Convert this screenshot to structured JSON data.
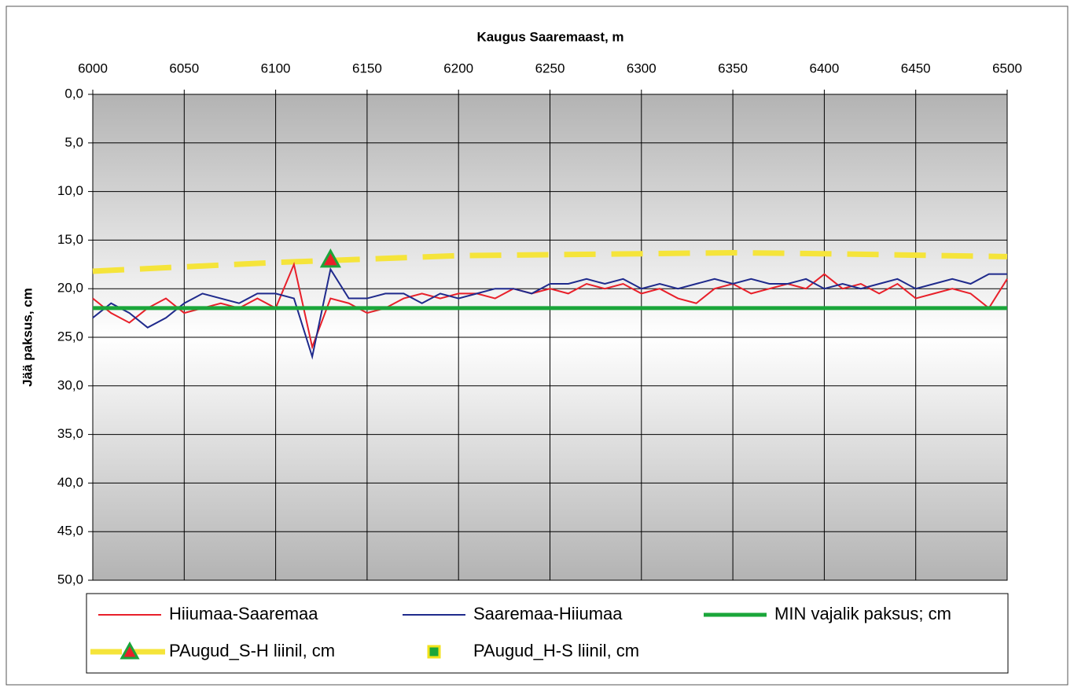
{
  "chart_data": {
    "type": "line",
    "x_label": "Kaugus Saaremaast, m",
    "y_label": "Jää paksus, cm",
    "xlim": [
      6000,
      6500
    ],
    "xticks": [
      6000,
      6050,
      6100,
      6150,
      6200,
      6250,
      6300,
      6350,
      6400,
      6450,
      6500
    ],
    "ylim": [
      0,
      50
    ],
    "y_reversed": true,
    "yticks": [
      {
        "value": 0,
        "label": "0,0"
      },
      {
        "value": 5,
        "label": "5,0"
      },
      {
        "value": 10,
        "label": "10,0"
      },
      {
        "value": 15,
        "label": "15,0"
      },
      {
        "value": 20,
        "label": "20,0"
      },
      {
        "value": 25,
        "label": "25,0"
      },
      {
        "value": 30,
        "label": "30,0"
      },
      {
        "value": 35,
        "label": "35,0"
      },
      {
        "value": 40,
        "label": "40,0"
      },
      {
        "value": 45,
        "label": "45,0"
      },
      {
        "value": 50,
        "label": "50,0"
      }
    ],
    "grid": true,
    "series": [
      {
        "name": "Hiiumaa-Saaremaa",
        "color": "#e8202a",
        "style": "line",
        "x": [
          6000,
          6010,
          6020,
          6030,
          6040,
          6050,
          6060,
          6070,
          6080,
          6090,
          6100,
          6110,
          6120,
          6130,
          6140,
          6150,
          6160,
          6170,
          6180,
          6190,
          6200,
          6210,
          6220,
          6230,
          6240,
          6250,
          6260,
          6270,
          6280,
          6290,
          6300,
          6310,
          6320,
          6330,
          6340,
          6350,
          6360,
          6370,
          6380,
          6390,
          6400,
          6410,
          6420,
          6430,
          6440,
          6450,
          6460,
          6470,
          6480,
          6490,
          6500
        ],
        "values": [
          21,
          22.5,
          23.5,
          22,
          21,
          22.5,
          22,
          21.5,
          22,
          21,
          22,
          17.5,
          26,
          21,
          21.5,
          22.5,
          22,
          21,
          20.5,
          21,
          20.5,
          20.5,
          21,
          20,
          20.5,
          20,
          20.5,
          19.5,
          20,
          19.5,
          20.5,
          20,
          21,
          21.5,
          20,
          19.5,
          20.5,
          20,
          19.5,
          20,
          18.5,
          20,
          19.5,
          20.5,
          19.5,
          21,
          20.5,
          20,
          20.5,
          22,
          19
        ]
      },
      {
        "name": "Saaremaa-Hiiumaa",
        "color": "#1f2a8c",
        "style": "line",
        "x": [
          6000,
          6010,
          6020,
          6030,
          6040,
          6050,
          6060,
          6070,
          6080,
          6090,
          6100,
          6110,
          6120,
          6130,
          6140,
          6150,
          6160,
          6170,
          6180,
          6190,
          6200,
          6210,
          6220,
          6230,
          6240,
          6250,
          6260,
          6270,
          6280,
          6290,
          6300,
          6310,
          6320,
          6330,
          6340,
          6350,
          6360,
          6370,
          6380,
          6390,
          6400,
          6410,
          6420,
          6430,
          6440,
          6450,
          6460,
          6470,
          6480,
          6490,
          6500
        ],
        "values": [
          23,
          21.5,
          22.5,
          24,
          23,
          21.5,
          20.5,
          21,
          21.5,
          20.5,
          20.5,
          21,
          27,
          18,
          21,
          21,
          20.5,
          20.5,
          21.5,
          20.5,
          21,
          20.5,
          20,
          20,
          20.5,
          19.5,
          19.5,
          19,
          19.5,
          19,
          20,
          19.5,
          20,
          19.5,
          19,
          19.5,
          19,
          19.5,
          19.5,
          19,
          20,
          19.5,
          20,
          19.5,
          19,
          20,
          19.5,
          19,
          19.5,
          18.5,
          18.5
        ]
      },
      {
        "name": "MIN vajalik paksus; cm",
        "color": "#1aa63a",
        "style": "thick",
        "x": [
          6000,
          6500
        ],
        "values": [
          22,
          22
        ]
      },
      {
        "name": "PAugud_S-H liinil, cm",
        "color": "#e8202a",
        "marker_edge": "#1aa63a",
        "style": "triangle",
        "x": [
          6130
        ],
        "values": [
          17
        ]
      },
      {
        "name": "PAugud_H-S liinil, cm",
        "color": "#1aa63a",
        "marker_edge": "#f2e21a",
        "style": "square",
        "x": [],
        "values": []
      }
    ],
    "trendline": {
      "color": "#f5e43a",
      "x": [
        6000,
        6100,
        6200,
        6300,
        6350,
        6400,
        6500
      ],
      "values": [
        18.2,
        17.3,
        16.6,
        16.4,
        16.3,
        16.4,
        16.7
      ]
    }
  }
}
